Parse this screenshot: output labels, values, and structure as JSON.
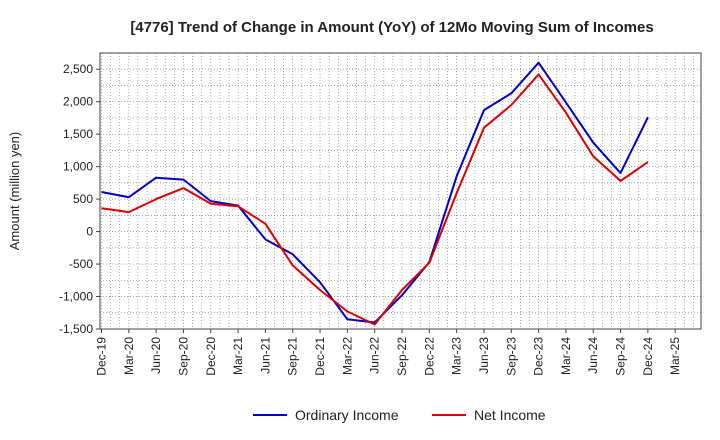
{
  "chart_data": {
    "type": "line",
    "title": "[4776]  Trend of Change in Amount (YoY) of 12Mo Moving Sum of Incomes",
    "xlabel": "",
    "ylabel": "Amount (million yen)",
    "ylim": [
      -1500,
      2750
    ],
    "yticks": [
      -1500,
      -1000,
      -500,
      0,
      500,
      1000,
      1500,
      2000,
      2500
    ],
    "ytick_labels": [
      "-1,500",
      "-1,000",
      "-500",
      "0",
      "500",
      "1,000",
      "1,500",
      "2,000",
      "2,500"
    ],
    "categories": [
      "Dec-19",
      "Mar-20",
      "Jun-20",
      "Sep-20",
      "Dec-20",
      "Mar-21",
      "Jun-21",
      "Sep-21",
      "Dec-21",
      "Mar-22",
      "Jun-22",
      "Sep-22",
      "Dec-22",
      "Mar-23",
      "Jun-23",
      "Sep-23",
      "Dec-23",
      "Mar-24",
      "Jun-24",
      "Sep-24",
      "Dec-24",
      "Mar-25"
    ],
    "grid": true,
    "legend_position": "bottom-center",
    "series": [
      {
        "name": "Ordinary Income",
        "color": "#0000cc",
        "values": [
          610,
          530,
          830,
          800,
          470,
          400,
          -120,
          -350,
          -780,
          -1350,
          -1400,
          -980,
          -470,
          850,
          1870,
          2130,
          2600,
          1990,
          1370,
          900,
          1760,
          null
        ]
      },
      {
        "name": "Net Income",
        "color": "#dd0000",
        "values": [
          360,
          300,
          500,
          670,
          430,
          390,
          120,
          -520,
          -900,
          -1230,
          -1430,
          -900,
          -480,
          590,
          1600,
          1950,
          2420,
          1830,
          1160,
          780,
          1070,
          null
        ]
      }
    ]
  }
}
